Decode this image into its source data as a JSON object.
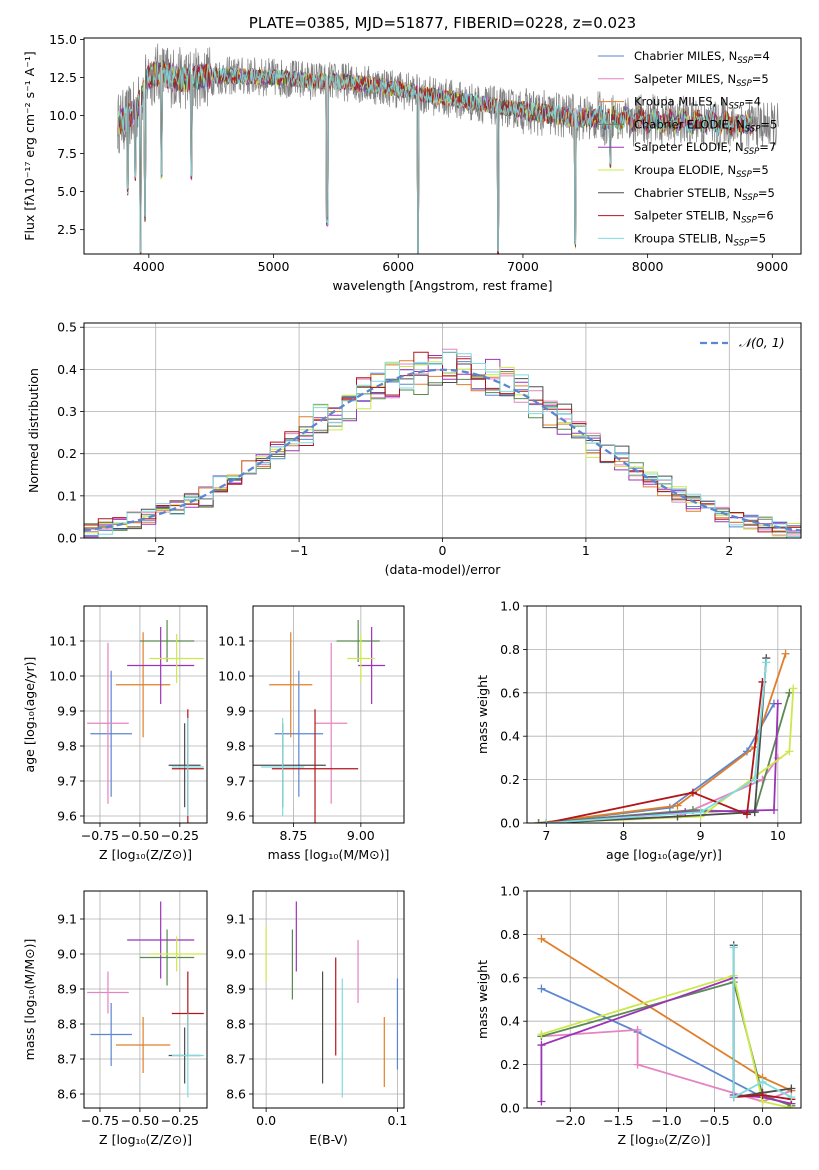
{
  "chart_data": [
    {
      "type": "line",
      "title": "PLATE=0385, MJD=51877, FIBERID=0228, z=0.023",
      "xlabel": "wavelength [Angstrom, rest frame]",
      "ylabel": "Flux [fλ10⁻¹⁷ erg cm⁻² s⁻¹ A⁻¹]",
      "xlim": [
        3480,
        9230
      ],
      "ylim": [
        0.9,
        15.1
      ],
      "xticks": [
        4000,
        5000,
        6000,
        7000,
        8000,
        9000
      ],
      "yticks": [
        2.5,
        5.0,
        7.5,
        10.0,
        12.5,
        15.0
      ],
      "legend_position": "upper-right",
      "series": [
        {
          "name": "Chabrier MILES, N_SSP=4",
          "color": "#5b86d2"
        },
        {
          "name": "Salpeter MILES, N_SSP=5",
          "color": "#e584c0"
        },
        {
          "name": "Kroupa MILES, N_SSP=4",
          "color": "#e07f2a"
        },
        {
          "name": "Chabrier ELODIE, N_SSP=5",
          "color": "#5a8a52"
        },
        {
          "name": "Salpeter ELODIE, N_SSP=7",
          "color": "#9b34b7"
        },
        {
          "name": "Kroupa ELODIE, N_SSP=5",
          "color": "#cce84a"
        },
        {
          "name": "Chabrier STELIB, N_SSP=5",
          "color": "#4d4d4d"
        },
        {
          "name": "Salpeter STELIB, N_SSP=6",
          "color": "#b3151a"
        },
        {
          "name": "Kroupa STELIB, N_SSP=5",
          "color": "#7fdcdf"
        }
      ],
      "continuum": {
        "x": [
          3750,
          3800,
          3900,
          4000,
          4100,
          4200,
          4300,
          4500,
          4700,
          5000,
          5300,
          5600,
          5900,
          6200,
          6500,
          6800,
          7100,
          7400,
          7700,
          8000,
          8300,
          8600,
          8900,
          9050
        ],
        "y": [
          9.5,
          9.7,
          10.3,
          12.6,
          12.8,
          12.5,
          12.4,
          12.6,
          12.6,
          12.5,
          12.3,
          12.2,
          11.9,
          11.4,
          11.0,
          10.6,
          10.2,
          9.9,
          9.8,
          9.7,
          9.6,
          9.5,
          9.4,
          9.3
        ]
      },
      "absorption_features": [
        {
          "x": 3830,
          "y": 5.0
        },
        {
          "x": 3890,
          "y": 6.0
        },
        {
          "x": 3934,
          "y": 1.0
        },
        {
          "x": 3968,
          "y": 3.2
        },
        {
          "x": 4102,
          "y": 6.1
        },
        {
          "x": 4340,
          "y": 6.0
        },
        {
          "x": 5430,
          "y": 3.0
        },
        {
          "x": 6160,
          "y": 1.0
        },
        {
          "x": 6800,
          "y": 1.0
        },
        {
          "x": 7420,
          "y": 1.5
        },
        {
          "x": 7700,
          "y": 6.7
        }
      ]
    },
    {
      "type": "line",
      "xlabel": "(data-model)/error",
      "ylabel": "Normed distribution",
      "xlim": [
        -2.5,
        2.5
      ],
      "ylim": [
        0,
        0.51
      ],
      "xticks": [
        -2,
        -1,
        0,
        1,
        2
      ],
      "yticks": [
        0.0,
        0.1,
        0.2,
        0.3,
        0.4,
        0.5
      ],
      "grid": true,
      "legend_position": "upper-right",
      "reference_curve": {
        "name": "𝒩(0, 1)",
        "mean": 0,
        "sigma": 1,
        "color": "#5b86d2"
      },
      "histogram_bin_width": 0.1,
      "histogram_range": [
        -2.5,
        2.5
      ],
      "series_colors": [
        "#5b86d2",
        "#e584c0",
        "#e07f2a",
        "#5a8a52",
        "#9b34b7",
        "#cce84a",
        "#4d4d4d",
        "#b3151a",
        "#7fdcdf"
      ]
    },
    {
      "type": "scatter",
      "xlabel": "Z [log₁₀(Z/Z⊙)]",
      "ylabel": "age  [log₁₀(age/yr)]",
      "xlim": [
        -0.85,
        -0.08
      ],
      "ylim": [
        9.58,
        10.2
      ],
      "xticks": [
        -0.75,
        -0.5,
        -0.25
      ],
      "yticks": [
        9.6,
        9.7,
        9.8,
        9.9,
        10.0,
        10.1
      ],
      "grid": true,
      "points": [
        {
          "x": -0.68,
          "y": 9.835,
          "xerr": 0.13,
          "yerr": 0.18,
          "color": "#5b86d2"
        },
        {
          "x": -0.7,
          "y": 9.865,
          "xerr": 0.13,
          "yerr": 0.23,
          "color": "#e584c0"
        },
        {
          "x": -0.48,
          "y": 9.975,
          "xerr": 0.17,
          "yerr": 0.15,
          "color": "#e07f2a"
        },
        {
          "x": -0.33,
          "y": 10.1,
          "xerr": 0.17,
          "yerr": 0.06,
          "color": "#5a8a52"
        },
        {
          "x": -0.37,
          "y": 10.03,
          "xerr": 0.21,
          "yerr": 0.11,
          "color": "#9b34b7"
        },
        {
          "x": -0.27,
          "y": 10.05,
          "xerr": 0.17,
          "yerr": 0.07,
          "color": "#cce84a"
        },
        {
          "x": -0.22,
          "y": 9.745,
          "xerr": 0.1,
          "yerr": 0.12,
          "color": "#4d4d4d"
        },
        {
          "x": -0.2,
          "y": 9.735,
          "xerr": 0.1,
          "yerr": 0.17,
          "color": "#b3151a"
        },
        {
          "x": -0.2,
          "y": 9.74,
          "xerr": 0.1,
          "yerr": 0.14,
          "color": "#7fdcdf"
        }
      ]
    },
    {
      "type": "scatter",
      "xlabel": "mass [log₁₀(M/M⊙)]",
      "ylabel": "",
      "xlim": [
        8.6,
        9.16
      ],
      "ylim": [
        9.58,
        10.2
      ],
      "xticks": [
        8.75,
        9.0
      ],
      "yticks": [
        9.6,
        9.7,
        9.8,
        9.9,
        10.0,
        10.1
      ],
      "grid": true,
      "points": [
        {
          "x": 8.77,
          "y": 9.835,
          "xerr": 0.09,
          "yerr": 0.18,
          "color": "#5b86d2"
        },
        {
          "x": 8.89,
          "y": 9.865,
          "xerr": 0.06,
          "yerr": 0.23,
          "color": "#e584c0"
        },
        {
          "x": 8.74,
          "y": 9.975,
          "xerr": 0.08,
          "yerr": 0.15,
          "color": "#e07f2a"
        },
        {
          "x": 8.99,
          "y": 10.1,
          "xerr": 0.08,
          "yerr": 0.06,
          "color": "#5a8a52"
        },
        {
          "x": 9.04,
          "y": 10.03,
          "xerr": 0.05,
          "yerr": 0.11,
          "color": "#9b34b7"
        },
        {
          "x": 9.0,
          "y": 10.05,
          "xerr": 0.05,
          "yerr": 0.07,
          "color": "#cce84a"
        },
        {
          "x": 8.71,
          "y": 9.745,
          "xerr": 0.16,
          "yerr": 0.12,
          "color": "#4d4d4d"
        },
        {
          "x": 8.83,
          "y": 9.735,
          "xerr": 0.16,
          "yerr": 0.17,
          "color": "#b3151a"
        },
        {
          "x": 8.71,
          "y": 9.74,
          "xerr": 0.08,
          "yerr": 0.14,
          "color": "#7fdcdf"
        }
      ]
    },
    {
      "type": "line",
      "xlabel": "age  [log₁₀(age/yr)]",
      "ylabel": "mass weight",
      "xlim": [
        6.75,
        10.3
      ],
      "ylim": [
        0,
        1.0
      ],
      "xticks": [
        7,
        8,
        9,
        10
      ],
      "yticks": [
        0.0,
        0.2,
        0.4,
        0.6,
        0.8,
        1.0
      ],
      "grid": true,
      "series": [
        {
          "color": "#5b86d2",
          "points": [
            [
              6.9,
              0.0
            ],
            [
              8.6,
              0.07
            ],
            [
              9.6,
              0.33
            ],
            [
              9.95,
              0.55
            ]
          ]
        },
        {
          "color": "#e584c0",
          "points": [
            [
              6.9,
              0.0
            ],
            [
              8.7,
              0.03
            ],
            [
              9.8,
              0.2
            ],
            [
              10.0,
              0.3
            ]
          ]
        },
        {
          "color": "#e07f2a",
          "points": [
            [
              6.9,
              0.0
            ],
            [
              8.7,
              0.08
            ],
            [
              9.7,
              0.35
            ],
            [
              10.1,
              0.78
            ]
          ]
        },
        {
          "color": "#5a8a52",
          "points": [
            [
              6.9,
              0.0
            ],
            [
              8.9,
              0.06
            ],
            [
              9.7,
              0.05
            ],
            [
              10.15,
              0.6
            ]
          ]
        },
        {
          "color": "#9b34b7",
          "points": [
            [
              7.0,
              0.0
            ],
            [
              8.8,
              0.05
            ],
            [
              9.95,
              0.06
            ],
            [
              10.0,
              0.55
            ]
          ]
        },
        {
          "color": "#cce84a",
          "points": [
            [
              7.0,
              0.0
            ],
            [
              9.0,
              0.03
            ],
            [
              10.15,
              0.33
            ],
            [
              10.2,
              0.62
            ]
          ]
        },
        {
          "color": "#4d4d4d",
          "points": [
            [
              7.0,
              0.0
            ],
            [
              8.7,
              0.03
            ],
            [
              9.7,
              0.05
            ],
            [
              9.85,
              0.76
            ]
          ]
        },
        {
          "color": "#b3151a",
          "points": [
            [
              7.0,
              0.0
            ],
            [
              8.9,
              0.14
            ],
            [
              9.6,
              0.04
            ],
            [
              9.8,
              0.65
            ]
          ]
        },
        {
          "color": "#7fdcdf",
          "points": [
            [
              7.0,
              0.0
            ],
            [
              9.0,
              0.05
            ],
            [
              9.7,
              0.2
            ],
            [
              9.85,
              0.74
            ]
          ]
        }
      ]
    },
    {
      "type": "scatter",
      "xlabel": "Z [log₁₀(Z/Z⊙)]",
      "ylabel": "mass [log₁₀(M/M⊙)]",
      "xlim": [
        -0.85,
        -0.08
      ],
      "ylim": [
        8.56,
        9.18
      ],
      "xticks": [
        -0.75,
        -0.5,
        -0.25
      ],
      "yticks": [
        8.6,
        8.7,
        8.8,
        8.9,
        9.0,
        9.1
      ],
      "grid": true,
      "points": [
        {
          "x": -0.68,
          "y": 8.77,
          "xerr": 0.13,
          "yerr": 0.09,
          "color": "#5b86d2"
        },
        {
          "x": -0.7,
          "y": 8.89,
          "xerr": 0.13,
          "yerr": 0.06,
          "color": "#e584c0"
        },
        {
          "x": -0.48,
          "y": 8.74,
          "xerr": 0.17,
          "yerr": 0.08,
          "color": "#e07f2a"
        },
        {
          "x": -0.33,
          "y": 8.99,
          "xerr": 0.17,
          "yerr": 0.08,
          "color": "#5a8a52"
        },
        {
          "x": -0.37,
          "y": 9.04,
          "xerr": 0.21,
          "yerr": 0.11,
          "color": "#9b34b7"
        },
        {
          "x": -0.27,
          "y": 9.0,
          "xerr": 0.17,
          "yerr": 0.05,
          "color": "#cce84a"
        },
        {
          "x": -0.22,
          "y": 8.71,
          "xerr": 0.1,
          "yerr": 0.08,
          "color": "#4d4d4d"
        },
        {
          "x": -0.2,
          "y": 8.83,
          "xerr": 0.1,
          "yerr": 0.12,
          "color": "#b3151a"
        },
        {
          "x": -0.2,
          "y": 8.71,
          "xerr": 0.1,
          "yerr": 0.12,
          "color": "#7fdcdf"
        }
      ]
    },
    {
      "type": "scatter",
      "xlabel": "E(B-V)",
      "ylabel": "",
      "xlim": [
        -0.01,
        0.105
      ],
      "ylim": [
        8.56,
        9.18
      ],
      "xticks": [
        0.0,
        0.1
      ],
      "yticks": [
        8.6,
        8.7,
        8.8,
        8.9,
        9.0,
        9.1
      ],
      "grid": true,
      "points": [
        {
          "x": 0.1,
          "y": 8.8,
          "yerr": 0.13,
          "color": "#5b86d2"
        },
        {
          "x": 0.07,
          "y": 8.95,
          "yerr": 0.09,
          "color": "#e584c0"
        },
        {
          "x": 0.09,
          "y": 8.72,
          "yerr": 0.1,
          "color": "#e07f2a"
        },
        {
          "x": 0.02,
          "y": 8.97,
          "yerr": 0.1,
          "color": "#5a8a52"
        },
        {
          "x": 0.023,
          "y": 9.05,
          "yerr": 0.1,
          "color": "#9b34b7"
        },
        {
          "x": 0.0,
          "y": 9.0,
          "yerr": 0.08,
          "color": "#cce84a"
        },
        {
          "x": 0.043,
          "y": 8.79,
          "yerr": 0.16,
          "color": "#4d4d4d"
        },
        {
          "x": 0.053,
          "y": 8.85,
          "yerr": 0.14,
          "color": "#b3151a"
        },
        {
          "x": 0.058,
          "y": 8.76,
          "yerr": 0.17,
          "color": "#7fdcdf"
        }
      ]
    },
    {
      "type": "line",
      "xlabel": "Z [log₁₀(Z/Z⊙)]",
      "ylabel": "mass weight",
      "xlim": [
        -2.45,
        0.4
      ],
      "ylim": [
        0,
        1.0
      ],
      "xticks": [
        -2.0,
        -1.5,
        -1.0,
        -0.5,
        0.0
      ],
      "yticks": [
        0.0,
        0.2,
        0.4,
        0.6,
        0.8,
        1.0
      ],
      "grid": true,
      "series": [
        {
          "color": "#5b86d2",
          "points": [
            [
              -2.3,
              0.55
            ],
            [
              -1.3,
              0.35
            ],
            [
              0.0,
              0.05
            ],
            [
              0.3,
              0.02
            ]
          ]
        },
        {
          "color": "#e584c0",
          "points": [
            [
              -2.3,
              0.33
            ],
            [
              -1.3,
              0.36
            ],
            [
              -1.3,
              0.2
            ],
            [
              0.0,
              0.03
            ],
            [
              0.3,
              0.08
            ]
          ]
        },
        {
          "color": "#e07f2a",
          "points": [
            [
              -2.3,
              0.78
            ],
            [
              0.0,
              0.14
            ],
            [
              0.3,
              0.08
            ]
          ]
        },
        {
          "color": "#5a8a52",
          "points": [
            [
              -2.3,
              0.33
            ],
            [
              -0.3,
              0.58
            ],
            [
              0.0,
              0.06
            ],
            [
              0.3,
              0.01
            ]
          ]
        },
        {
          "color": "#9b34b7",
          "points": [
            [
              -2.3,
              0.03
            ],
            [
              -2.3,
              0.29
            ],
            [
              -0.3,
              0.6
            ],
            [
              -0.3,
              0.06
            ],
            [
              0.0,
              0.05
            ],
            [
              0.3,
              0.02
            ]
          ]
        },
        {
          "color": "#cce84a",
          "points": [
            [
              -2.3,
              0.34
            ],
            [
              -0.3,
              0.61
            ],
            [
              0.0,
              0.03
            ],
            [
              0.3,
              0.0
            ]
          ]
        },
        {
          "color": "#4d4d4d",
          "points": [
            [
              -0.3,
              0.75
            ],
            [
              -0.3,
              0.05
            ],
            [
              0.0,
              0.07
            ],
            [
              0.3,
              0.09
            ]
          ]
        },
        {
          "color": "#b3151a",
          "points": [
            [
              -0.3,
              0.05
            ],
            [
              0.0,
              0.06
            ],
            [
              0.3,
              0.04
            ]
          ]
        },
        {
          "color": "#7fdcdf",
          "points": [
            [
              -0.3,
              0.74
            ],
            [
              -0.3,
              0.05
            ],
            [
              0.0,
              0.12
            ],
            [
              0.3,
              0.05
            ]
          ]
        }
      ]
    }
  ]
}
